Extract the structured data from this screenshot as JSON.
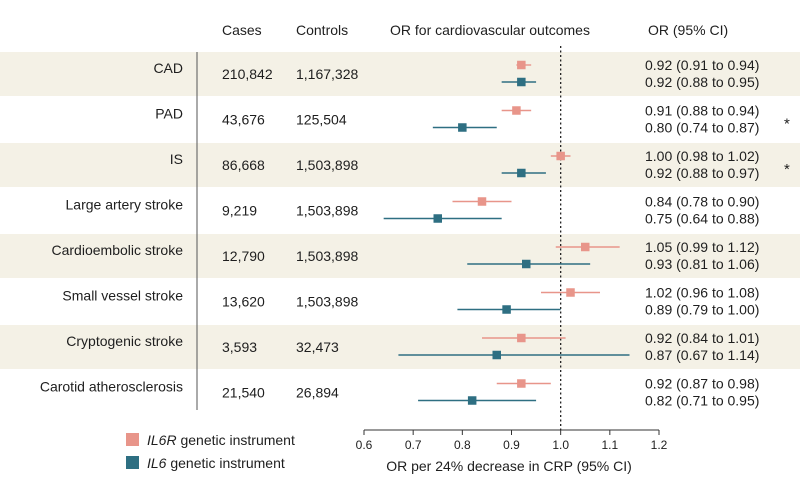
{
  "chart_data": {
    "type": "forest",
    "title": "",
    "headers": {
      "cases": "Cases",
      "controls": "Controls",
      "plot": "OR for cardiovascular outcomes",
      "ci": "OR (95% CI)"
    },
    "xlabel": "OR per 24% decrease in CRP (95% CI)",
    "xlim": [
      0.6,
      1.2
    ],
    "xticks": [
      0.6,
      0.7,
      0.8,
      0.9,
      1.0,
      1.1,
      1.2
    ],
    "xtick_labels": [
      "0.6",
      "0.7",
      "0.8",
      "0.9",
      "1.0",
      "1.1",
      "1.2"
    ],
    "reference_line": 1.0,
    "series": [
      {
        "name": "IL6R genetic instrument",
        "prefix": "IL6R",
        "suffix": " genetic instrument",
        "color": "#e8958a"
      },
      {
        "name": "IL6 genetic instrument",
        "prefix": "IL6",
        "suffix": " genetic instrument",
        "color": "#2e6f82"
      }
    ],
    "band_color": "#f4f1e6",
    "rows": [
      {
        "outcome": "CAD",
        "cases": "210,842",
        "controls": "1,167,328",
        "star": false,
        "il6r": {
          "or": 0.92,
          "lo": 0.91,
          "hi": 0.94,
          "label": "0.92 (0.91 to 0.94)"
        },
        "il6": {
          "or": 0.92,
          "lo": 0.88,
          "hi": 0.95,
          "label": "0.92 (0.88 to 0.95)"
        }
      },
      {
        "outcome": "PAD",
        "cases": "43,676",
        "controls": "125,504",
        "star": true,
        "il6r": {
          "or": 0.91,
          "lo": 0.88,
          "hi": 0.94,
          "label": "0.91 (0.88 to 0.94)"
        },
        "il6": {
          "or": 0.8,
          "lo": 0.74,
          "hi": 0.87,
          "label": "0.80 (0.74 to 0.87)"
        }
      },
      {
        "outcome": "IS",
        "cases": "86,668",
        "controls": "1,503,898",
        "star": true,
        "il6r": {
          "or": 1.0,
          "lo": 0.98,
          "hi": 1.02,
          "label": "1.00 (0.98 to 1.02)"
        },
        "il6": {
          "or": 0.92,
          "lo": 0.88,
          "hi": 0.97,
          "label": "0.92 (0.88 to 0.97)"
        }
      },
      {
        "outcome": "Large artery stroke",
        "cases": "9,219",
        "controls": "1,503,898",
        "star": false,
        "il6r": {
          "or": 0.84,
          "lo": 0.78,
          "hi": 0.9,
          "label": "0.84 (0.78 to 0.90)"
        },
        "il6": {
          "or": 0.75,
          "lo": 0.64,
          "hi": 0.88,
          "label": "0.75 (0.64 to 0.88)"
        }
      },
      {
        "outcome": "Cardioembolic stroke",
        "cases": "12,790",
        "controls": "1,503,898",
        "star": false,
        "il6r": {
          "or": 1.05,
          "lo": 0.99,
          "hi": 1.12,
          "label": "1.05 (0.99 to 1.12)"
        },
        "il6": {
          "or": 0.93,
          "lo": 0.81,
          "hi": 1.06,
          "label": "0.93 (0.81 to 1.06)"
        }
      },
      {
        "outcome": "Small vessel stroke",
        "cases": "13,620",
        "controls": "1,503,898",
        "star": false,
        "il6r": {
          "or": 1.02,
          "lo": 0.96,
          "hi": 1.08,
          "label": "1.02 (0.96 to 1.08)"
        },
        "il6": {
          "or": 0.89,
          "lo": 0.79,
          "hi": 1.0,
          "label": "0.89 (0.79 to 1.00)"
        }
      },
      {
        "outcome": "Cryptogenic stroke",
        "cases": "3,593",
        "controls": "32,473",
        "star": false,
        "il6r": {
          "or": 0.92,
          "lo": 0.84,
          "hi": 1.01,
          "label": "0.92 (0.84 to 1.01)"
        },
        "il6": {
          "or": 0.87,
          "lo": 0.67,
          "hi": 1.14,
          "label": "0.87 (0.67 to 1.14)"
        }
      },
      {
        "outcome": "Carotid atherosclerosis",
        "cases": "21,540",
        "controls": "26,894",
        "star": false,
        "il6r": {
          "or": 0.92,
          "lo": 0.87,
          "hi": 0.98,
          "label": "0.92 (0.87 to 0.98)"
        },
        "il6": {
          "or": 0.82,
          "lo": 0.71,
          "hi": 0.95,
          "label": "0.82 (0.71 to 0.95)"
        }
      }
    ]
  }
}
